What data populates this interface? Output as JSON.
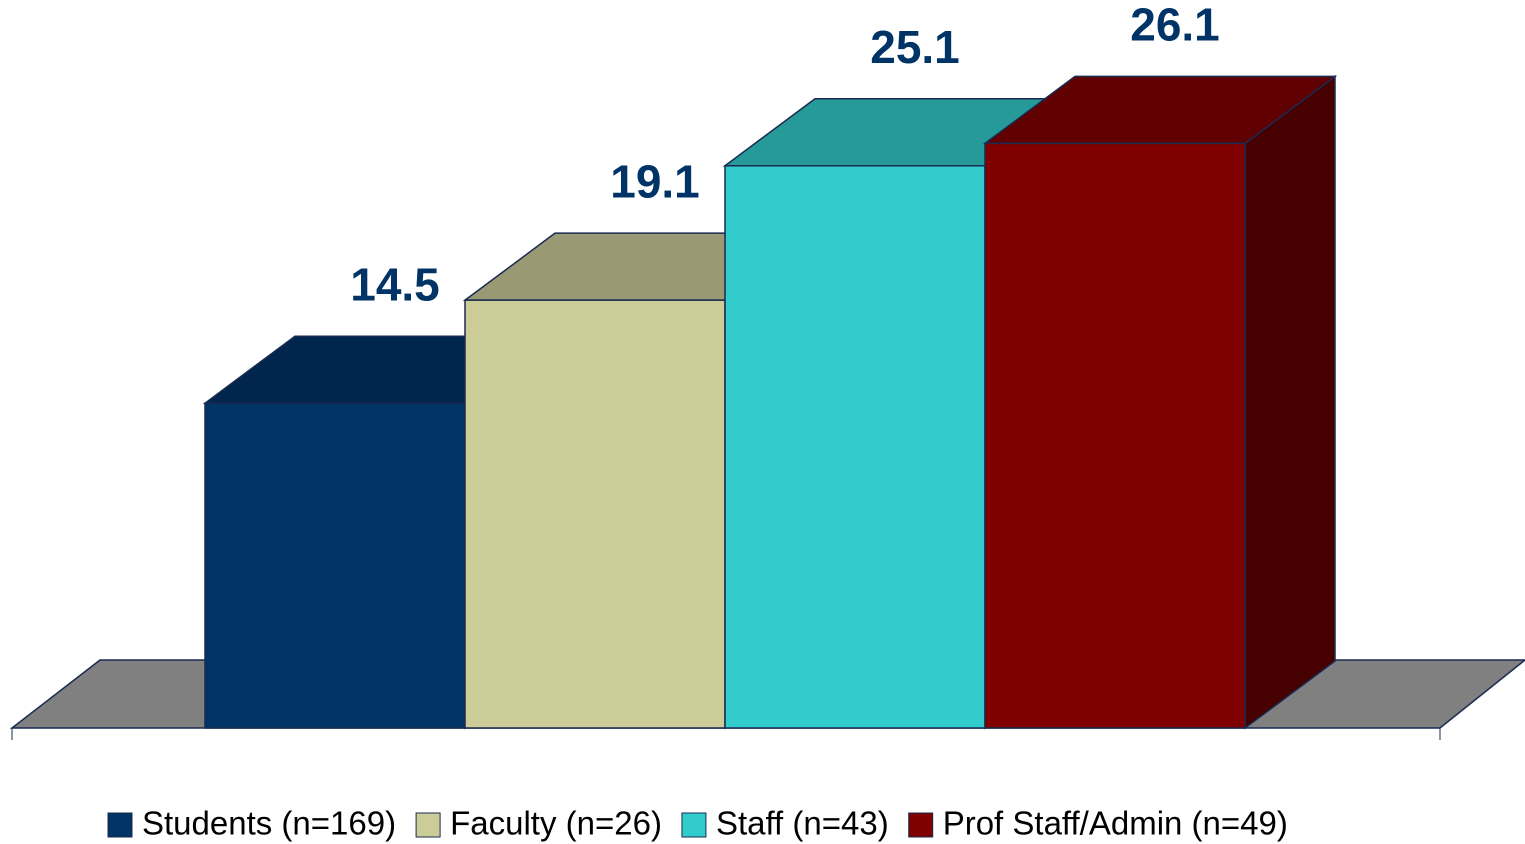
{
  "chart_data": {
    "type": "bar3d",
    "categories": [
      "Students (n=169)",
      "Faculty (n=26)",
      "Staff (n=43)",
      "Prof Staff/Admin (n=49)"
    ],
    "values": [
      14.5,
      19.1,
      25.1,
      26.1
    ],
    "colors": [
      "#003366",
      "#cccc99",
      "#33cccc",
      "#800000"
    ]
  }
}
